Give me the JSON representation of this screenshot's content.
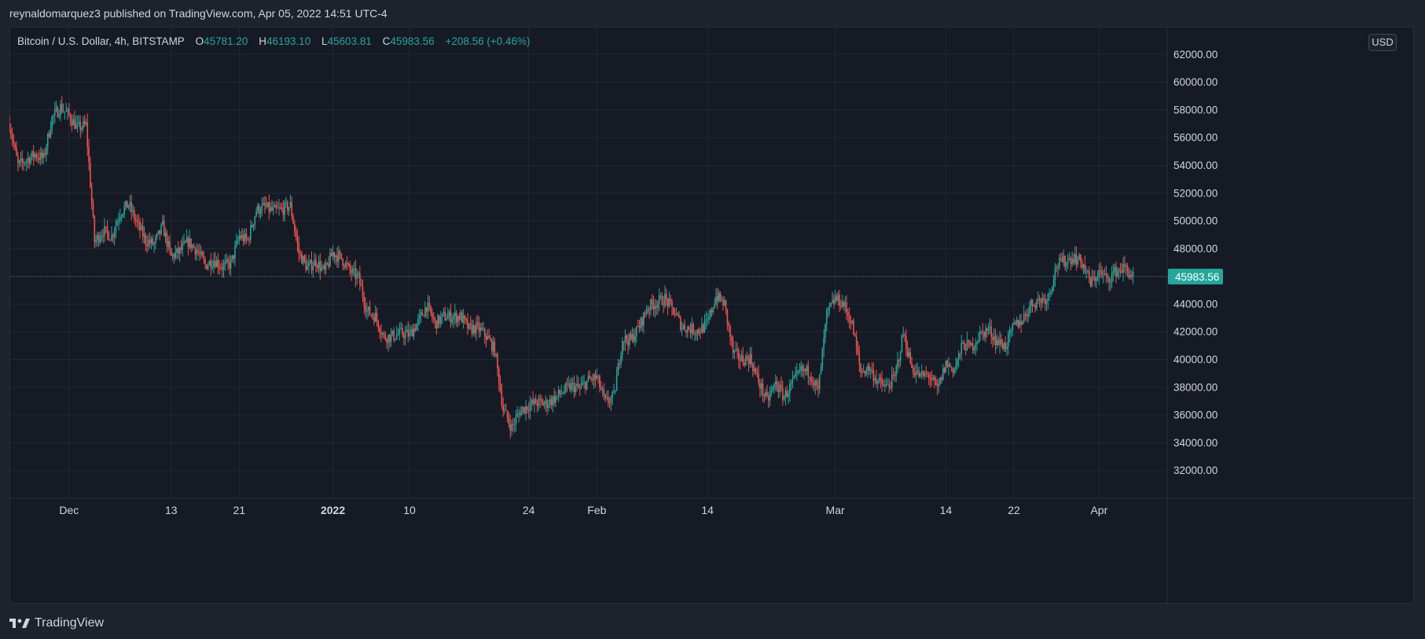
{
  "header": {
    "published_line": "reynaldomarquez3 published on TradingView.com, Apr 05, 2022 14:51 UTC-4"
  },
  "legend": {
    "symbol": "Bitcoin / U.S. Dollar, 4h, BITSTAMP",
    "open_label": "O",
    "open": "45781.20",
    "high_label": "H",
    "high": "46193.10",
    "low_label": "L",
    "low": "45603.81",
    "close_label": "C",
    "close": "45983.56",
    "change": "+208.56 (+0.46%)"
  },
  "currency": "USD",
  "last_price_label": "45983.56",
  "footer": {
    "brand": "TradingView",
    "logo_icon": "tradingview-logo-icon"
  },
  "colors": {
    "background": "#161a25",
    "up": "#26a69a",
    "down": "#ef5350",
    "grid": "#232836",
    "axis_text": "#d1d4dc",
    "last_price_line": "#26a69a"
  },
  "chart_data": {
    "type": "candlestick",
    "interval": "4h",
    "ylim": [
      30000,
      64000
    ],
    "y_ticks": [
      32000,
      34000,
      36000,
      38000,
      40000,
      42000,
      44000,
      46000,
      48000,
      50000,
      52000,
      54000,
      56000,
      58000,
      60000,
      62000
    ],
    "y_tick_labels": [
      "32000.00",
      "34000.00",
      "36000.00",
      "38000.00",
      "40000.00",
      "42000.00",
      "44000.00",
      "",
      "48000.00",
      "50000.00",
      "52000.00",
      "54000.00",
      "56000.00",
      "58000.00",
      "60000.00",
      "62000.00"
    ],
    "x_range": [
      "2021-11-24",
      "2022-04-09"
    ],
    "x_ticks": [
      {
        "date": "2021-12-01",
        "label": "Dec",
        "bold": false
      },
      {
        "date": "2021-12-13",
        "label": "13",
        "bold": false
      },
      {
        "date": "2021-12-21",
        "label": "21",
        "bold": false
      },
      {
        "date": "2022-01-01",
        "label": "2022",
        "bold": true
      },
      {
        "date": "2022-01-10",
        "label": "10",
        "bold": false
      },
      {
        "date": "2022-01-24",
        "label": "24",
        "bold": false
      },
      {
        "date": "2022-02-01",
        "label": "Feb",
        "bold": false
      },
      {
        "date": "2022-02-14",
        "label": "14",
        "bold": false
      },
      {
        "date": "2022-03-01",
        "label": "Mar",
        "bold": false
      },
      {
        "date": "2022-03-14",
        "label": "14",
        "bold": false
      },
      {
        "date": "2022-03-22",
        "label": "22",
        "bold": false
      },
      {
        "date": "2022-04-01",
        "label": "Apr",
        "bold": false
      }
    ],
    "last_price": 45983.56,
    "close_path": [
      [
        "2021-11-24",
        57000
      ],
      [
        "2021-11-25",
        54000
      ],
      [
        "2021-11-27",
        54800
      ],
      [
        "2021-11-28",
        54500
      ],
      [
        "2021-11-29",
        57400
      ],
      [
        "2021-11-30",
        58200
      ],
      [
        "2021-12-01",
        57600
      ],
      [
        "2021-12-02",
        56700
      ],
      [
        "2021-12-03",
        56900
      ],
      [
        "2021-12-04",
        48500
      ],
      [
        "2021-12-05",
        49300
      ],
      [
        "2021-12-06",
        48900
      ],
      [
        "2021-12-07",
        50600
      ],
      [
        "2021-12-08",
        51200
      ],
      [
        "2021-12-09",
        49800
      ],
      [
        "2021-12-10",
        48600
      ],
      [
        "2021-12-11",
        48300
      ],
      [
        "2021-12-12",
        49600
      ],
      [
        "2021-12-13",
        47400
      ],
      [
        "2021-12-14",
        47800
      ],
      [
        "2021-12-15",
        48500
      ],
      [
        "2021-12-16",
        47900
      ],
      [
        "2021-12-17",
        46800
      ],
      [
        "2021-12-18",
        47200
      ],
      [
        "2021-12-19",
        46700
      ],
      [
        "2021-12-20",
        46900
      ],
      [
        "2021-12-21",
        48900
      ],
      [
        "2021-12-22",
        48600
      ],
      [
        "2021-12-23",
        50800
      ],
      [
        "2021-12-24",
        51000
      ],
      [
        "2021-12-25",
        50700
      ],
      [
        "2021-12-26",
        50800
      ],
      [
        "2021-12-27",
        51100
      ],
      [
        "2021-12-28",
        47700
      ],
      [
        "2021-12-29",
        46600
      ],
      [
        "2021-12-30",
        47100
      ],
      [
        "2021-12-31",
        46300
      ],
      [
        "2022-01-01",
        47700
      ],
      [
        "2022-01-02",
        47300
      ],
      [
        "2022-01-03",
        46400
      ],
      [
        "2022-01-04",
        45900
      ],
      [
        "2022-01-05",
        43500
      ],
      [
        "2022-01-06",
        43100
      ],
      [
        "2022-01-07",
        41600
      ],
      [
        "2022-01-08",
        41700
      ],
      [
        "2022-01-09",
        41900
      ],
      [
        "2022-01-10",
        41800
      ],
      [
        "2022-01-11",
        42700
      ],
      [
        "2022-01-12",
        43900
      ],
      [
        "2022-01-13",
        42600
      ],
      [
        "2022-01-14",
        43100
      ],
      [
        "2022-01-15",
        43100
      ],
      [
        "2022-01-16",
        43100
      ],
      [
        "2022-01-17",
        42200
      ],
      [
        "2022-01-18",
        42300
      ],
      [
        "2022-01-19",
        41700
      ],
      [
        "2022-01-20",
        40700
      ],
      [
        "2022-01-21",
        36400
      ],
      [
        "2022-01-22",
        35100
      ],
      [
        "2022-01-23",
        36300
      ],
      [
        "2022-01-24",
        36700
      ],
      [
        "2022-01-25",
        36900
      ],
      [
        "2022-01-26",
        36800
      ],
      [
        "2022-01-27",
        37200
      ],
      [
        "2022-01-28",
        37700
      ],
      [
        "2022-01-29",
        38100
      ],
      [
        "2022-01-30",
        37900
      ],
      [
        "2022-01-31",
        38500
      ],
      [
        "2022-02-01",
        38700
      ],
      [
        "2022-02-02",
        36900
      ],
      [
        "2022-02-03",
        37300
      ],
      [
        "2022-02-04",
        41500
      ],
      [
        "2022-02-05",
        41400
      ],
      [
        "2022-02-06",
        42400
      ],
      [
        "2022-02-07",
        43800
      ],
      [
        "2022-02-08",
        44100
      ],
      [
        "2022-02-09",
        44400
      ],
      [
        "2022-02-10",
        43500
      ],
      [
        "2022-02-11",
        42400
      ],
      [
        "2022-02-12",
        42200
      ],
      [
        "2022-02-13",
        42100
      ],
      [
        "2022-02-14",
        42600
      ],
      [
        "2022-02-15",
        44600
      ],
      [
        "2022-02-16",
        44000
      ],
      [
        "2022-02-17",
        40500
      ],
      [
        "2022-02-18",
        40000
      ],
      [
        "2022-02-19",
        40100
      ],
      [
        "2022-02-20",
        38400
      ],
      [
        "2022-02-21",
        37000
      ],
      [
        "2022-02-22",
        38300
      ],
      [
        "2022-02-23",
        37300
      ],
      [
        "2022-02-24",
        38300
      ],
      [
        "2022-02-25",
        39200
      ],
      [
        "2022-02-26",
        39100
      ],
      [
        "2022-02-27",
        37700
      ],
      [
        "2022-02-28",
        43200
      ],
      [
        "2022-03-01",
        44400
      ],
      [
        "2022-03-02",
        44000
      ],
      [
        "2022-03-03",
        42500
      ],
      [
        "2022-03-04",
        39100
      ],
      [
        "2022-03-05",
        39400
      ],
      [
        "2022-03-06",
        38400
      ],
      [
        "2022-03-07",
        38000
      ],
      [
        "2022-03-08",
        38700
      ],
      [
        "2022-03-09",
        41900
      ],
      [
        "2022-03-10",
        39400
      ],
      [
        "2022-03-11",
        38800
      ],
      [
        "2022-03-12",
        38900
      ],
      [
        "2022-03-13",
        37800
      ],
      [
        "2022-03-14",
        39700
      ],
      [
        "2022-03-15",
        39300
      ],
      [
        "2022-03-16",
        41100
      ],
      [
        "2022-03-17",
        40900
      ],
      [
        "2022-03-18",
        41800
      ],
      [
        "2022-03-19",
        42200
      ],
      [
        "2022-03-20",
        41300
      ],
      [
        "2022-03-21",
        41000
      ],
      [
        "2022-03-22",
        42400
      ],
      [
        "2022-03-23",
        42900
      ],
      [
        "2022-03-24",
        44000
      ],
      [
        "2022-03-25",
        44300
      ],
      [
        "2022-03-26",
        44500
      ],
      [
        "2022-03-27",
        46800
      ],
      [
        "2022-03-28",
        47100
      ],
      [
        "2022-03-29",
        47400
      ],
      [
        "2022-03-30",
        47000
      ],
      [
        "2022-03-31",
        45500
      ],
      [
        "2022-04-01",
        46300
      ],
      [
        "2022-04-02",
        45800
      ],
      [
        "2022-04-03",
        46400
      ],
      [
        "2022-04-04",
        46600
      ],
      [
        "2022-04-05",
        45983.56
      ]
    ]
  }
}
